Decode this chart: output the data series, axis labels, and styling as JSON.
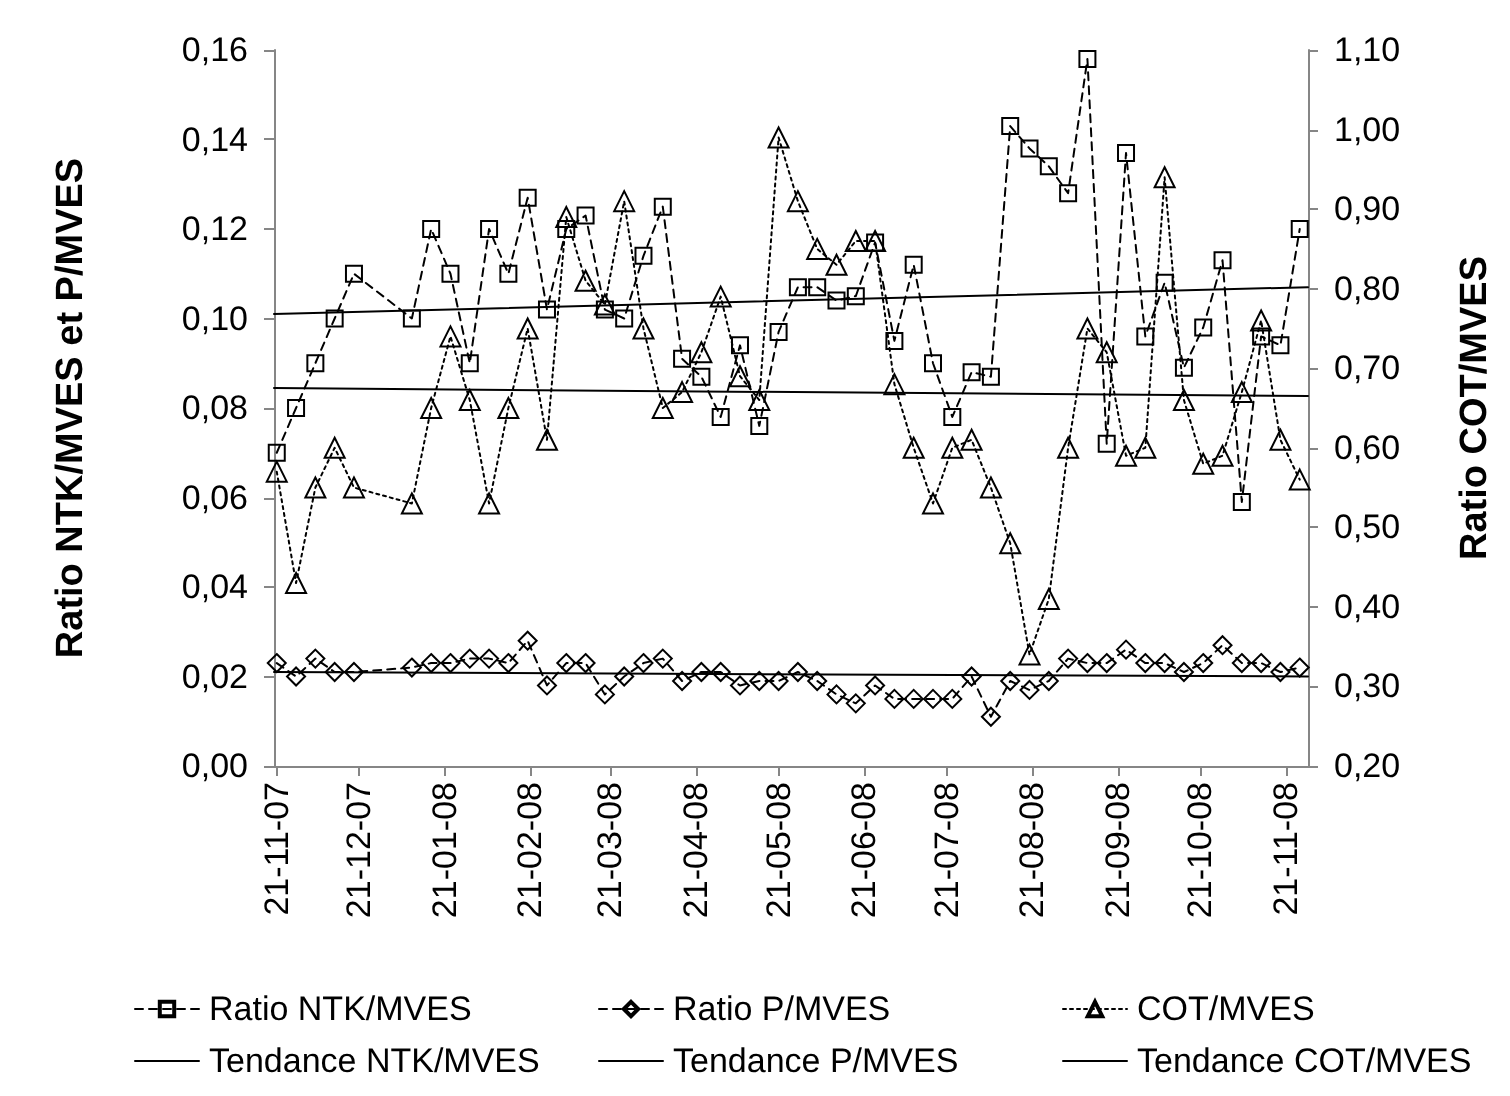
{
  "chart_data": {
    "type": "line",
    "ylabel": "Ratio NTK/MVES et P/MVES",
    "y2label": "Ratio COT/MVES",
    "x": [
      "2007-11-21",
      "2007-11-28",
      "2007-12-05",
      "2007-12-12",
      "2007-12-19",
      "2008-01-09",
      "2008-01-16",
      "2008-01-23",
      "2008-01-30",
      "2008-02-06",
      "2008-02-13",
      "2008-02-20",
      "2008-02-27",
      "2008-03-05",
      "2008-03-12",
      "2008-03-19",
      "2008-03-26",
      "2008-04-02",
      "2008-04-09",
      "2008-04-16",
      "2008-04-23",
      "2008-04-30",
      "2008-05-07",
      "2008-05-14",
      "2008-05-21",
      "2008-05-28",
      "2008-06-04",
      "2008-06-11",
      "2008-06-18",
      "2008-06-25",
      "2008-07-02",
      "2008-07-09",
      "2008-07-16",
      "2008-07-23",
      "2008-07-30",
      "2008-08-06",
      "2008-08-13",
      "2008-08-20",
      "2008-08-27",
      "2008-09-03",
      "2008-09-10",
      "2008-09-17",
      "2008-09-24",
      "2008-10-01",
      "2008-10-08",
      "2008-10-15",
      "2008-10-22",
      "2008-10-29",
      "2008-11-05",
      "2008-11-12",
      "2008-11-19",
      "2008-11-26"
    ],
    "series": [
      {
        "name": "Ratio NTK/MVES",
        "color": "#000000",
        "marker": "square",
        "line_style": "dashed",
        "values": [
          0.07,
          0.08,
          0.09,
          0.1,
          0.11,
          0.1,
          0.12,
          0.11,
          0.09,
          0.12,
          0.11,
          0.127,
          0.102,
          0.12,
          0.123,
          0.102,
          0.1,
          0.114,
          0.125,
          0.091,
          0.087,
          0.078,
          0.094,
          0.076,
          0.097,
          0.107,
          0.107,
          0.104,
          0.105,
          0.117,
          0.095,
          0.112,
          0.09,
          0.078,
          0.088,
          0.087,
          0.143,
          0.138,
          0.134,
          0.128,
          0.158,
          0.072,
          0.137,
          0.096,
          0.108,
          0.089,
          0.098,
          0.113,
          0.059,
          0.096,
          0.094,
          0.12
        ]
      },
      {
        "name": "Ratio P/MVES",
        "color": "#000000",
        "marker": "diamond",
        "line_style": "dashed",
        "values": [
          0.023,
          0.02,
          0.024,
          0.021,
          0.021,
          0.022,
          0.023,
          0.023,
          0.024,
          0.024,
          0.023,
          0.028,
          0.018,
          0.023,
          0.023,
          0.016,
          0.02,
          0.023,
          0.024,
          0.019,
          0.021,
          0.021,
          0.018,
          0.019,
          0.019,
          0.021,
          0.019,
          0.016,
          0.014,
          0.018,
          0.015,
          0.015,
          0.015,
          0.015,
          0.02,
          0.011,
          0.019,
          0.017,
          0.019,
          0.024,
          0.023,
          0.023,
          0.026,
          0.023,
          0.023,
          0.021,
          0.023,
          0.027,
          0.023,
          0.023,
          0.021,
          0.022
        ]
      },
      {
        "name": "COT/MVES",
        "color": "#000000",
        "marker": "triangle",
        "line_style": "dotted",
        "axis": "y2",
        "values": [
          0.57,
          0.43,
          0.55,
          0.6,
          0.55,
          0.53,
          0.65,
          0.74,
          0.66,
          0.53,
          0.65,
          0.75,
          0.61,
          0.89,
          0.81,
          0.78,
          0.91,
          0.75,
          0.65,
          0.67,
          0.72,
          0.79,
          0.69,
          0.66,
          0.99,
          0.91,
          0.85,
          0.83,
          0.86,
          0.86,
          0.68,
          0.6,
          0.53,
          0.6,
          0.61,
          0.55,
          0.48,
          0.34,
          0.41,
          0.6,
          0.75,
          0.72,
          0.59,
          0.6,
          0.94,
          0.66,
          0.58,
          0.59,
          0.67,
          0.76,
          0.61,
          0.56
        ]
      },
      {
        "name": "Tendance NTK/MVES",
        "color": "#000000",
        "marker": "none",
        "line_style": "solid",
        "x": [
          "2007-11-20",
          "2008-11-29"
        ],
        "values": [
          0.101,
          0.107
        ]
      },
      {
        "name": "Tendance P/MVES",
        "color": "#000000",
        "marker": "none",
        "line_style": "solid",
        "x": [
          "2007-11-20",
          "2008-11-29"
        ],
        "values": [
          0.021,
          0.02
        ]
      },
      {
        "name": "Tendance COT/MVES",
        "color": "#000000",
        "marker": "none",
        "line_style": "solid",
        "axis": "y2",
        "x": [
          "2007-11-20",
          "2008-11-29"
        ],
        "values": [
          0.675,
          0.665
        ]
      }
    ],
    "xlim": [
      "2007-11-20",
      "2008-11-29"
    ],
    "xticks": [
      {
        "value": "2007-11-21",
        "label": "21-11-07"
      },
      {
        "value": "2007-12-21",
        "label": "21-12-07"
      },
      {
        "value": "2008-01-21",
        "label": "21-01-08"
      },
      {
        "value": "2008-02-21",
        "label": "21-02-08"
      },
      {
        "value": "2008-03-21",
        "label": "21-03-08"
      },
      {
        "value": "2008-04-21",
        "label": "21-04-08"
      },
      {
        "value": "2008-05-21",
        "label": "21-05-08"
      },
      {
        "value": "2008-06-21",
        "label": "21-06-08"
      },
      {
        "value": "2008-07-21",
        "label": "21-07-08"
      },
      {
        "value": "2008-08-21",
        "label": "21-08-08"
      },
      {
        "value": "2008-09-21",
        "label": "21-09-08"
      },
      {
        "value": "2008-10-21",
        "label": "21-10-08"
      },
      {
        "value": "2008-11-21",
        "label": "21-11-08"
      }
    ],
    "ylim": [
      0,
      0.16
    ],
    "yticks": [
      {
        "value": 0,
        "label": "0,00"
      },
      {
        "value": 0.02,
        "label": "0,02"
      },
      {
        "value": 0.04,
        "label": "0,04"
      },
      {
        "value": 0.06,
        "label": "0,06"
      },
      {
        "value": 0.08,
        "label": "0,08"
      },
      {
        "value": 0.1,
        "label": "0,10"
      },
      {
        "value": 0.12,
        "label": "0,12"
      },
      {
        "value": 0.14,
        "label": "0,14"
      },
      {
        "value": 0.16,
        "label": "0,16"
      }
    ],
    "y2lim": [
      0.2,
      1.1
    ],
    "y2ticks": [
      {
        "value": 0.2,
        "label": "0,20"
      },
      {
        "value": 0.3,
        "label": "0,30"
      },
      {
        "value": 0.4,
        "label": "0,40"
      },
      {
        "value": 0.5,
        "label": "0,50"
      },
      {
        "value": 0.6,
        "label": "0,60"
      },
      {
        "value": 0.7,
        "label": "0,70"
      },
      {
        "value": 0.8,
        "label": "0,80"
      },
      {
        "value": 0.9,
        "label": "0,90"
      },
      {
        "value": 1.0,
        "label": "1,00"
      },
      {
        "value": 1.1,
        "label": "1,10"
      }
    ],
    "legend": "bottom"
  }
}
